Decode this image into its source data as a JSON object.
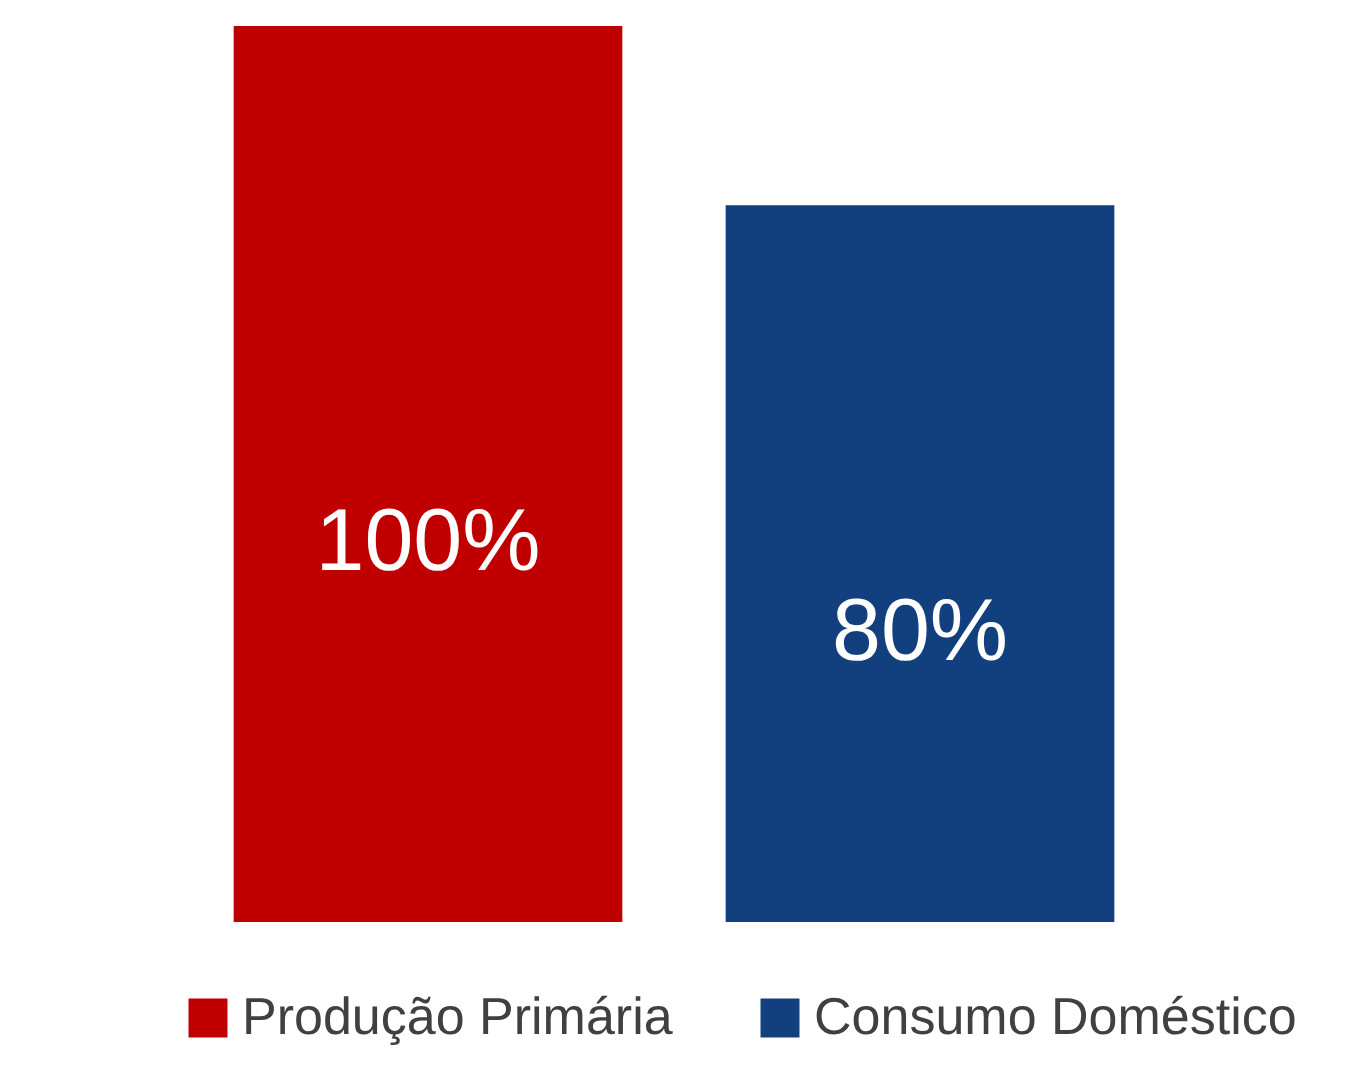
{
  "chart_data": {
    "type": "bar",
    "categories": [
      null
    ],
    "series": [
      {
        "name": "Produção Primária",
        "color": "#c00000",
        "values": [
          100
        ],
        "value_labels": [
          "100%"
        ]
      },
      {
        "name": "Consumo Doméstico",
        "color": "#12407f",
        "values": [
          80
        ],
        "value_labels": [
          "80%"
        ]
      }
    ],
    "ylim": [
      0,
      100
    ],
    "tick_labels": false,
    "legend": "bottom"
  }
}
